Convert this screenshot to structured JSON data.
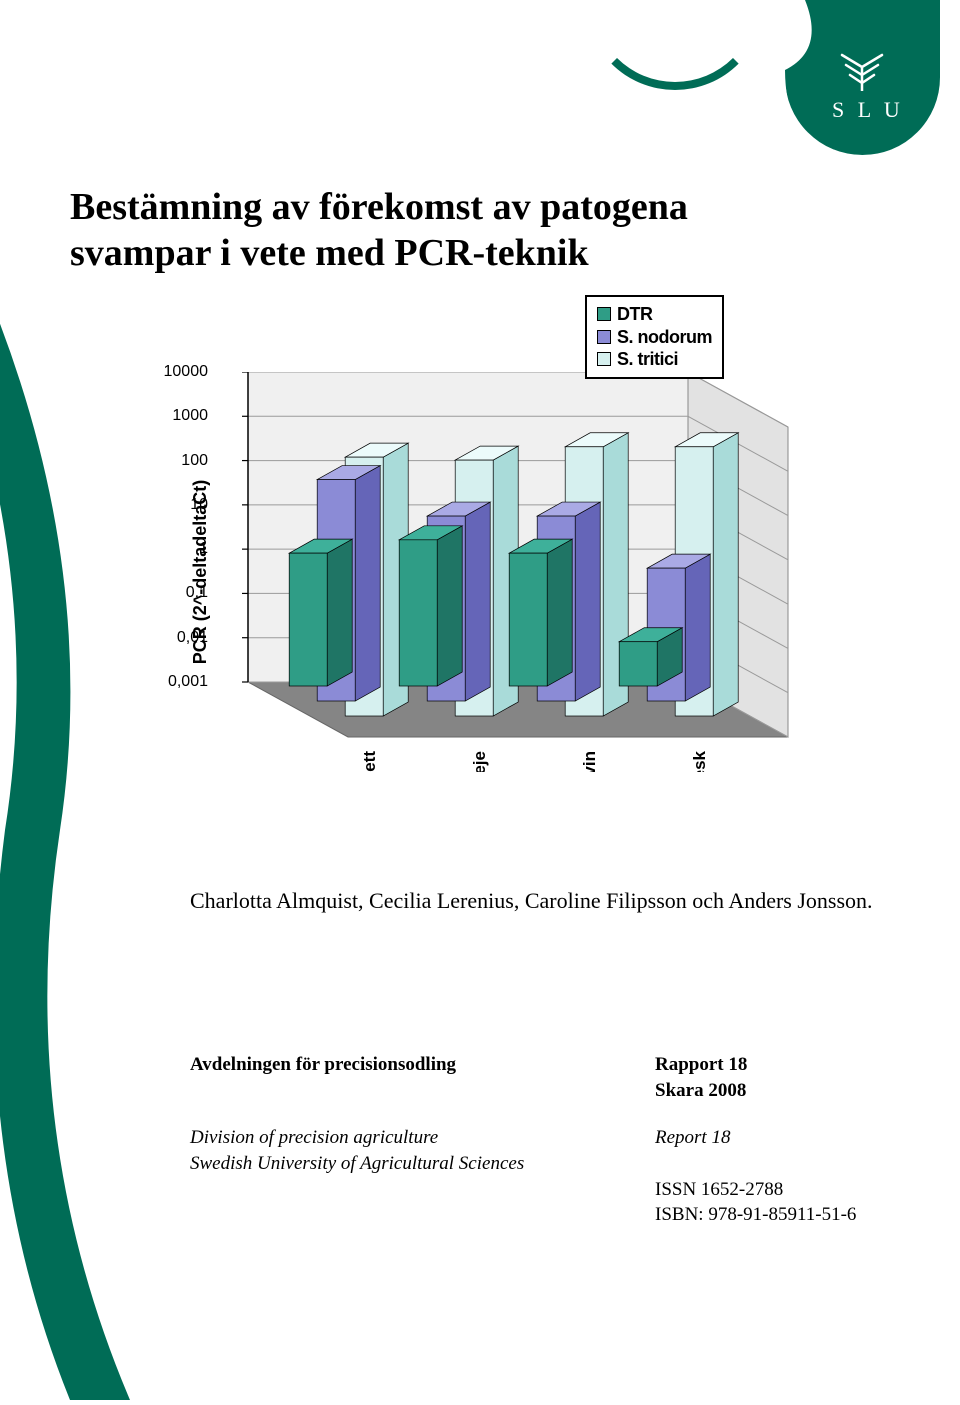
{
  "logo": {
    "text": "S L U"
  },
  "title": "Bestämning av förekomst av patogena svampar i vete med PCR-teknik",
  "legend": {
    "items": [
      {
        "label": "DTR",
        "color": "#2f9d86"
      },
      {
        "label": "S. nodorum",
        "color": "#8b8bd6"
      },
      {
        "label": "S. tritici",
        "color": "#d6f0ef"
      }
    ],
    "border_color": "#000000"
  },
  "chart": {
    "type": "bar-3d-log",
    "y_label": "PCR (2^-deltadeltaCt)",
    "y_ticks": [
      "10000",
      "1000",
      "100",
      "10",
      "1",
      "0,1",
      "0,01",
      "0,001"
    ],
    "y_scale": "log",
    "categories": [
      "Florett",
      "Skalmeje",
      "Olivin",
      "Harnesk"
    ],
    "series": [
      {
        "name": "DTR",
        "color_top": "#3eb09a",
        "color_front": "#2f9d86",
        "color_side": "#1f7565",
        "values": [
          1,
          2,
          1,
          0.01
        ]
      },
      {
        "name": "S. nodorum",
        "color_top": "#aaaae5",
        "color_front": "#8b8bd6",
        "color_side": "#6565b8",
        "values": [
          100,
          15,
          15,
          1
        ]
      },
      {
        "name": "S. tritici",
        "color_top": "#ecfbfb",
        "color_front": "#d6f0ef",
        "color_side": "#a9dbd9",
        "values": [
          700,
          600,
          1200,
          1200
        ]
      }
    ],
    "back_wall_color": "#f0f0f0",
    "floor_color": "#858585",
    "grid_color": "#9a9a9a"
  },
  "authors": "Charlotta Almquist, Cecilia Lerenius, Caroline Filipsson och Anders Jonsson.",
  "footer": {
    "dept": "Avdelningen för precisionsodling",
    "rapport": "Rapport 18",
    "location": "Skara 2008",
    "division": "Division of precision agriculture",
    "report": "Report 18",
    "university": "Swedish University of Agricultural Sciences",
    "issn": "ISSN 1652-2788",
    "isbn": "ISBN: 978-91-85911-51-6"
  },
  "brand_color": "#006c56"
}
